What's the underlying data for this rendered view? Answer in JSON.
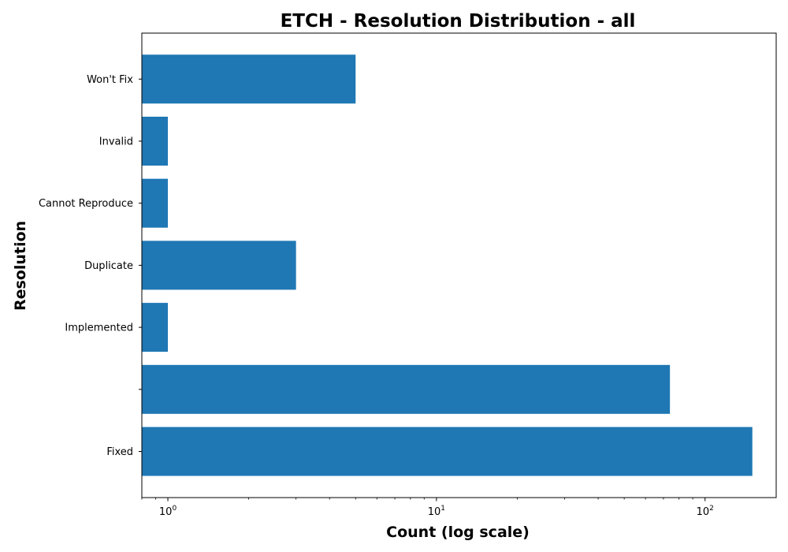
{
  "chart_data": {
    "type": "bar",
    "orientation": "horizontal",
    "title": "ETCH - Resolution Distribution - all",
    "xlabel": "Count (log scale)",
    "ylabel": "Resolution",
    "x_scale": "log",
    "xlim": [
      0.8,
      184
    ],
    "x_ticks": [
      {
        "value": 1,
        "base": "10",
        "exp": "0"
      },
      {
        "value": 10,
        "base": "10",
        "exp": "1"
      },
      {
        "value": 100,
        "base": "10",
        "exp": "2"
      }
    ],
    "categories": [
      "Fixed",
      "",
      "Implemented",
      "Duplicate",
      "Cannot Reproduce",
      "Invalid",
      "Won't Fix"
    ],
    "values": [
      150,
      74,
      1,
      3,
      1,
      1,
      5
    ],
    "bar_color": "#1f77b4",
    "grid": false,
    "legend": false
  }
}
